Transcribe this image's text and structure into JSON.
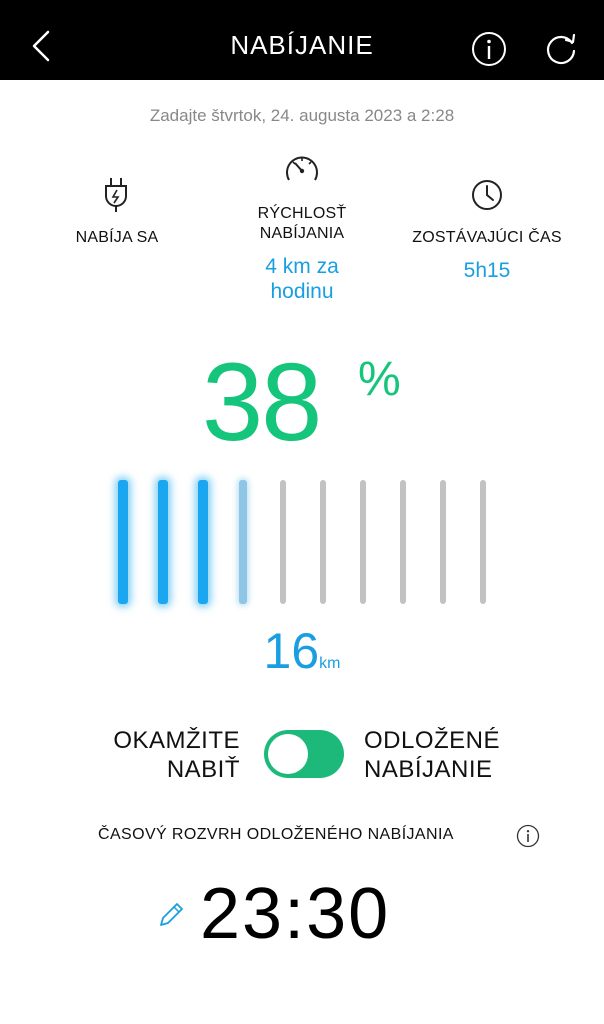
{
  "header": {
    "title": "NABÍJANIE",
    "back_icon": "chevron-left-icon",
    "info_icon": "info-icon",
    "refresh_icon": "refresh-icon"
  },
  "date_text": "Zadajte štvrtok, 24. augusta 2023 a 2:28",
  "stats": {
    "status": {
      "icon": "plug-icon",
      "label": "NABÍJA SA"
    },
    "speed": {
      "icon": "speedometer-icon",
      "label_line1": "RÝCHLOSŤ",
      "label_line2": "NABÍJANIA",
      "value_line1": "4 km za",
      "value_line2": "hodinu"
    },
    "remaining": {
      "icon": "clock-icon",
      "label": "ZOSTÁVAJÚCI ČAS",
      "value": "5h15"
    }
  },
  "battery": {
    "percent": "38",
    "percent_sign": "%",
    "level": 0.38,
    "range_value": "16",
    "range_unit": "km"
  },
  "mode_toggle": {
    "left_line1": "OKAMŽITE",
    "left_line2": "NABIŤ",
    "right_line1": "ODLOŽENÉ",
    "right_line2": "NABÍJANIE",
    "state": "on"
  },
  "schedule": {
    "label": "ČASOVÝ ROZVRH ODLOŽENÉHO NABÍJANIA",
    "info_icon": "info-icon",
    "edit_icon": "pencil-icon",
    "time": "23:30"
  },
  "colors": {
    "header_bg": "#000000",
    "green": "#16c57c",
    "blue": "#1a9ee2",
    "toggle_on": "#1cb97a"
  }
}
